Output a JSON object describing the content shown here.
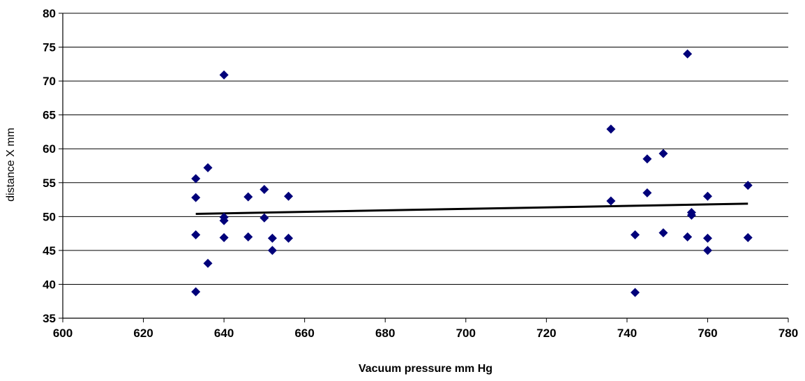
{
  "chart_data": {
    "type": "scatter",
    "title": "",
    "xlabel": "Vacuum pressure  mm Hg",
    "ylabel": "distance X mm",
    "xlim": [
      600,
      780
    ],
    "ylim": [
      35,
      80
    ],
    "xticks": [
      600,
      620,
      640,
      660,
      680,
      700,
      720,
      740,
      760,
      780
    ],
    "yticks": [
      35,
      40,
      45,
      50,
      55,
      60,
      65,
      70,
      75,
      80
    ],
    "grid": "horizontal",
    "legend": "none",
    "marker": "diamond",
    "colors": {
      "points": "#00007a",
      "trendline": "#000000",
      "gridlines": "#000000"
    },
    "series": [
      {
        "points": [
          [
            633,
            55.6
          ],
          [
            633,
            52.8
          ],
          [
            633,
            47.3
          ],
          [
            633,
            38.9
          ],
          [
            636,
            57.2
          ],
          [
            636,
            43.1
          ],
          [
            640,
            70.9
          ],
          [
            640,
            49.9
          ],
          [
            640,
            49.4
          ],
          [
            640,
            46.9
          ],
          [
            646,
            52.9
          ],
          [
            646,
            47.0
          ],
          [
            650,
            54.0
          ],
          [
            650,
            49.8
          ],
          [
            652,
            46.8
          ],
          [
            652,
            45.0
          ],
          [
            656,
            53.0
          ],
          [
            656,
            46.8
          ],
          [
            736,
            62.9
          ],
          [
            736,
            52.3
          ],
          [
            742,
            47.3
          ],
          [
            742,
            38.8
          ],
          [
            745,
            58.5
          ],
          [
            745,
            53.5
          ],
          [
            749,
            59.3
          ],
          [
            749,
            47.6
          ],
          [
            755,
            74.0
          ],
          [
            755,
            47.0
          ],
          [
            756,
            50.6
          ],
          [
            756,
            50.2
          ],
          [
            760,
            53.0
          ],
          [
            760,
            46.8
          ],
          [
            760,
            45.0
          ],
          [
            770,
            54.6
          ],
          [
            770,
            46.9
          ]
        ]
      }
    ],
    "trendline": {
      "type": "linear",
      "x": [
        633,
        770
      ],
      "y": [
        50.4,
        51.9
      ]
    }
  }
}
